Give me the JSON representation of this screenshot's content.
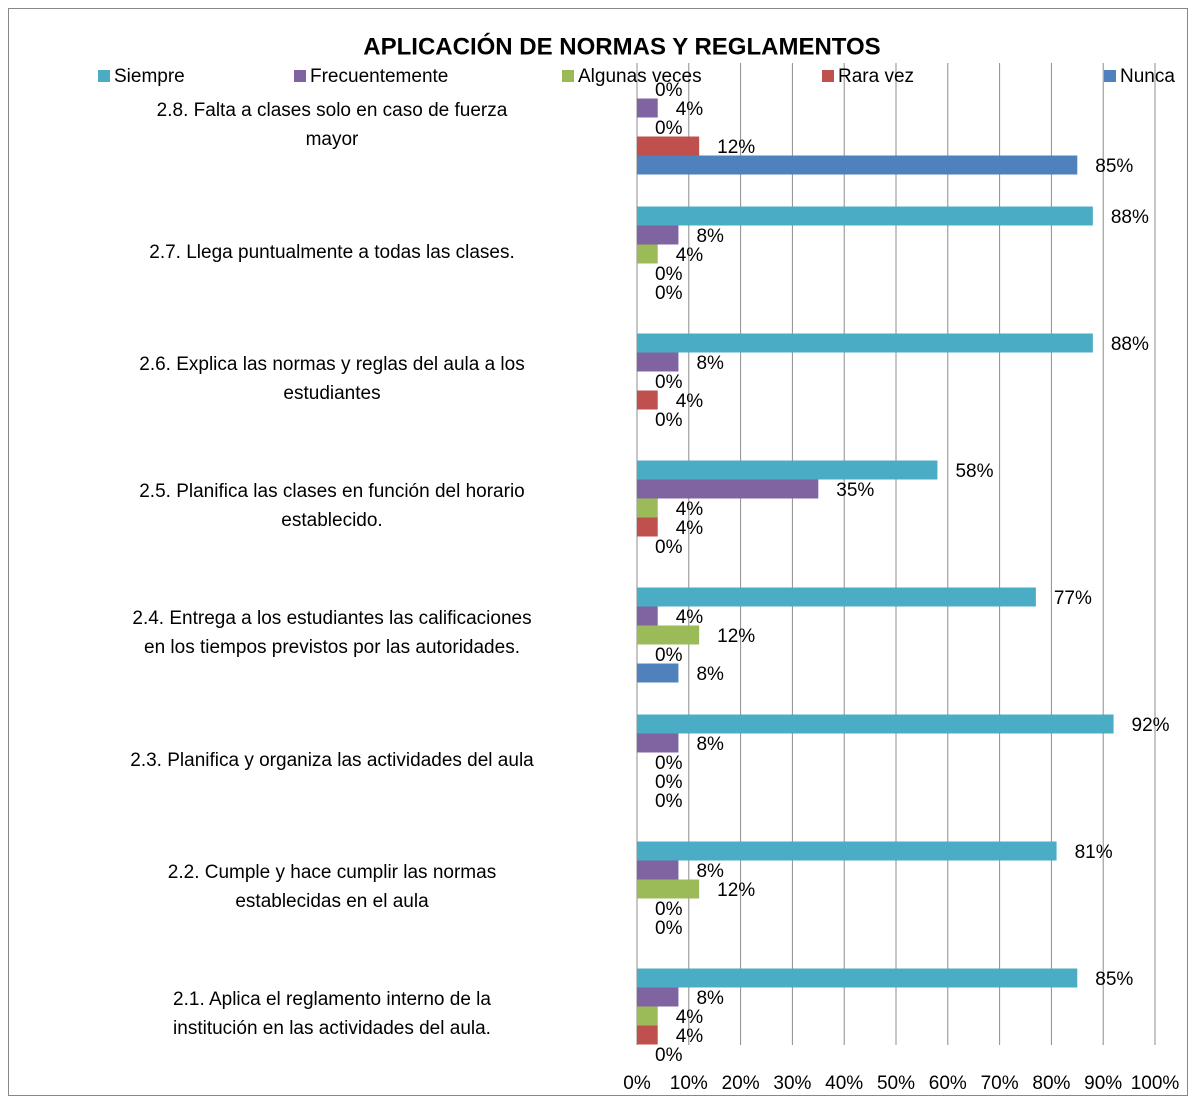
{
  "chart_data": {
    "type": "bar",
    "orientation": "horizontal",
    "title": "APLICACIÓN DE NORMAS Y REGLAMENTOS",
    "categories": [
      "2.1.  Aplica el reglamento interno de la\ninstitución en las actividades del aula.",
      "2.2.  Cumple y hace cumplir  las normas\nestablecidas en el aula",
      "2.3.  Planifica y organiza las actividades del aula",
      "2.4.  Entrega a los estudiantes las calificaciones\nen los tiempos previstos por las autoridades.",
      "2.5.  Planifica las clases en función del horario\nestablecido.",
      "2.6.  Explica las normas y reglas del aula a los\nestudiantes",
      "2.7.  Llega puntualmente a todas las clases.",
      "2.8.  Falta a  clases solo en caso de fuerza\nmayor"
    ],
    "series": [
      {
        "name": "Siempre",
        "color": "#4bacc6",
        "values": [
          85,
          81,
          92,
          77,
          58,
          88,
          88,
          0
        ],
        "value_labels": [
          "85%",
          "81%",
          "92%",
          "77%",
          "58%",
          "88%",
          "88%",
          "0%"
        ]
      },
      {
        "name": "Frecuentemente",
        "color": "#8064a2",
        "values": [
          8,
          8,
          8,
          4,
          35,
          8,
          8,
          4
        ],
        "value_labels": [
          "8%",
          "8%",
          "8%",
          "4%",
          "35%",
          "8%",
          "8%",
          "4%"
        ]
      },
      {
        "name": "Algunas veces",
        "color": "#9bbb59",
        "values": [
          4,
          12,
          0,
          12,
          4,
          0,
          4,
          0
        ],
        "value_labels": [
          "4%",
          "12%",
          "0%",
          "12%",
          "4%",
          "0%",
          "4%",
          "0%"
        ]
      },
      {
        "name": "Rara vez",
        "color": "#c0504d",
        "values": [
          4,
          0,
          0,
          0,
          4,
          4,
          0,
          12
        ],
        "value_labels": [
          "4%",
          "0%",
          "0%",
          "0%",
          "4%",
          "4%",
          "0%",
          "12%"
        ]
      },
      {
        "name": "Nunca",
        "color": "#4f81bd",
        "values": [
          0,
          0,
          0,
          8,
          0,
          0,
          0,
          85
        ],
        "value_labels": [
          "0%",
          "0%",
          "0%",
          "8%",
          "0%",
          "0%",
          "0%",
          "85%"
        ]
      }
    ],
    "xlim": [
      0,
      100
    ],
    "xticks": [
      {
        "value": 0,
        "label": "0%"
      },
      {
        "value": 10,
        "label": "10%"
      },
      {
        "value": 20,
        "label": "20%"
      },
      {
        "value": 30,
        "label": "30%"
      },
      {
        "value": 40,
        "label": "40%"
      },
      {
        "value": 50,
        "label": "50%"
      },
      {
        "value": 60,
        "label": "60%"
      },
      {
        "value": 70,
        "label": "70%"
      },
      {
        "value": 80,
        "label": "80%"
      },
      {
        "value": 90,
        "label": "90%"
      },
      {
        "value": 100,
        "label": "100%"
      }
    ],
    "grid": true,
    "legend": "top"
  }
}
